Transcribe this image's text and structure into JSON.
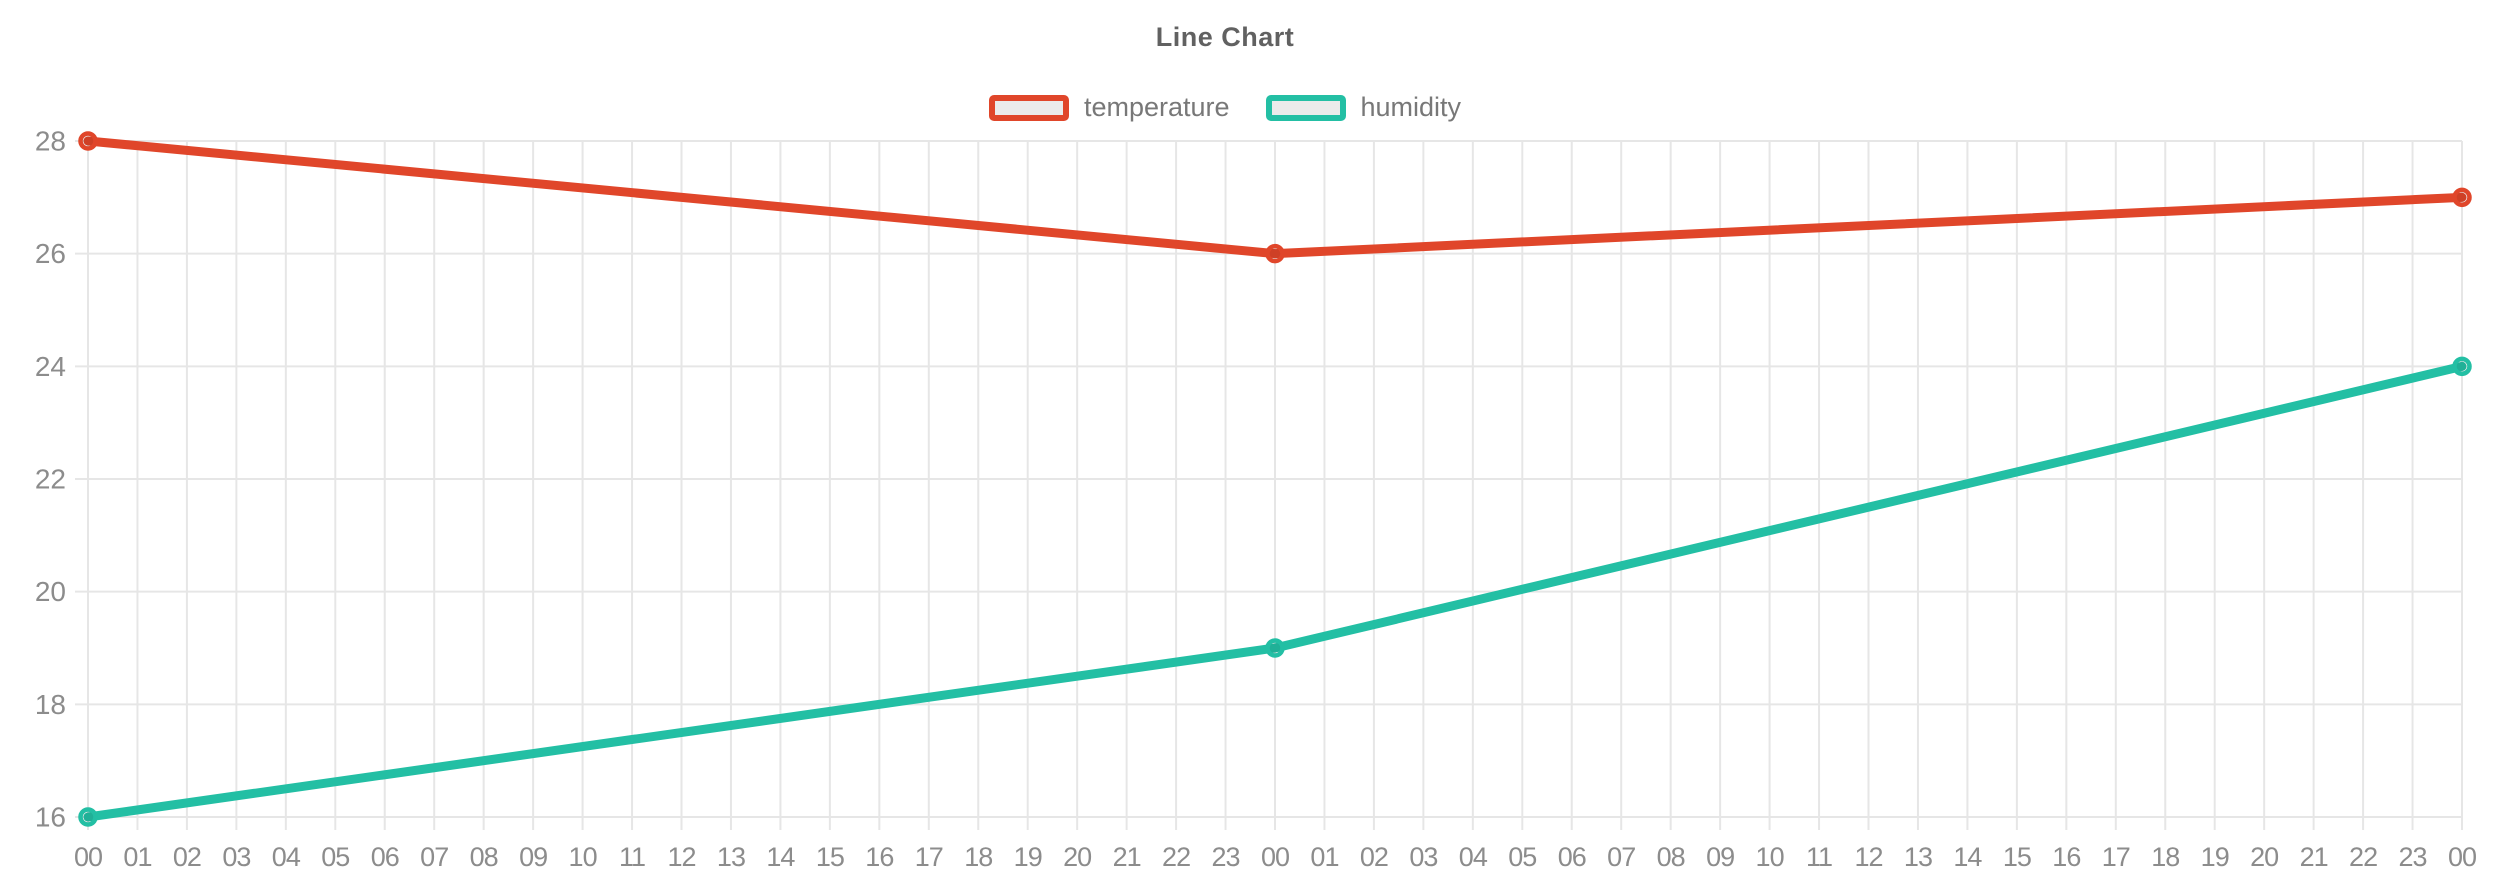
{
  "header": {
    "title": "Line Chart"
  },
  "chart_data": {
    "type": "line",
    "title": "Line Chart",
    "xlabel": "",
    "ylabel": "",
    "ylim": [
      16,
      28
    ],
    "y_ticks": [
      16,
      18,
      20,
      22,
      24,
      26,
      28
    ],
    "grid": true,
    "legend_position": "top-center",
    "x_labels": [
      "00",
      "01",
      "02",
      "03",
      "04",
      "05",
      "06",
      "07",
      "08",
      "09",
      "10",
      "11",
      "12",
      "13",
      "14",
      "15",
      "16",
      "17",
      "18",
      "19",
      "20",
      "21",
      "22",
      "23",
      "00",
      "01",
      "02",
      "03",
      "04",
      "05",
      "06",
      "07",
      "08",
      "09",
      "10",
      "11",
      "12",
      "13",
      "14",
      "15",
      "16",
      "17",
      "18",
      "19",
      "20",
      "21",
      "22",
      "23",
      "00"
    ],
    "series": [
      {
        "name": "temperature",
        "color": "#e0462a",
        "points": [
          {
            "x_index": 0,
            "x_label": "00",
            "value": 28
          },
          {
            "x_index": 24,
            "x_label": "00",
            "value": 26
          },
          {
            "x_index": 48,
            "x_label": "00",
            "value": 27
          }
        ]
      },
      {
        "name": "humidity",
        "color": "#23bfa4",
        "points": [
          {
            "x_index": 0,
            "x_label": "00",
            "value": 16
          },
          {
            "x_index": 24,
            "x_label": "00",
            "value": 19
          },
          {
            "x_index": 48,
            "x_label": "00",
            "value": 24
          }
        ]
      }
    ],
    "marker": {
      "style": "circle-open",
      "fill": "rgba(0,0,0,0.08)"
    },
    "colors": {
      "grid": "#e6e6e6",
      "axis_text": "#8c8c8c",
      "title_text": "#616161",
      "legend_text": "#787878",
      "background": "#ffffff"
    }
  }
}
